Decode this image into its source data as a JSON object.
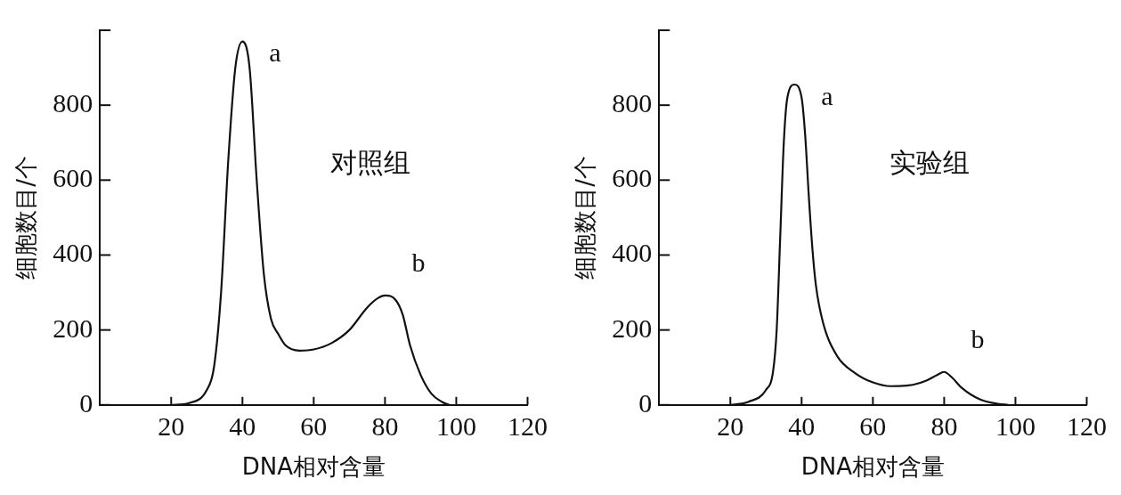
{
  "chart_data": [
    {
      "type": "line",
      "xlabel": "DNA相对含量",
      "ylabel": "细胞数目/个",
      "xlim": [
        0,
        120
      ],
      "ylim": [
        0,
        1000
      ],
      "xticks": [
        20,
        40,
        60,
        80,
        100,
        120
      ],
      "yticks": [
        0,
        200,
        400,
        600,
        800,
        {
          "value": 1000,
          "label": null
        }
      ],
      "grid": false,
      "legend": false,
      "series": [
        {
          "color": "#111111",
          "x": [
            20,
            25,
            30,
            32,
            34,
            36,
            38,
            40,
            42,
            44,
            46,
            48,
            50,
            52,
            56,
            60,
            65,
            70,
            75,
            78,
            80,
            83,
            85,
            87,
            90,
            93,
            96,
            98
          ],
          "values": [
            0,
            5,
            40,
            100,
            300,
            650,
            900,
            970,
            900,
            600,
            350,
            230,
            190,
            160,
            145,
            148,
            165,
            200,
            260,
            285,
            292,
            280,
            240,
            160,
            80,
            30,
            8,
            0
          ]
        }
      ],
      "annotations": [
        "对照组",
        {
          "text": "a",
          "x": 40,
          "y": 970
        },
        {
          "text": "b",
          "x": 80,
          "y": 292
        }
      ]
    },
    {
      "type": "line",
      "xlabel": "DNA相对含量",
      "ylabel": "细胞数目/个",
      "xlim": [
        0,
        120
      ],
      "ylim": [
        0,
        1000
      ],
      "xticks": [
        20,
        40,
        60,
        80,
        100,
        120
      ],
      "yticks": [
        0,
        200,
        400,
        600,
        800,
        {
          "value": 1000,
          "label": null
        }
      ],
      "grid": false,
      "legend": false,
      "series": [
        {
          "color": "#111111",
          "x": [
            20,
            25,
            30,
            32,
            33,
            34,
            35,
            36,
            38,
            40,
            41,
            42,
            43,
            44,
            46,
            50,
            55,
            60,
            65,
            70,
            75,
            78,
            80,
            82,
            85,
            90,
            95,
            98
          ],
          "values": [
            0,
            8,
            40,
            90,
            200,
            450,
            700,
            820,
            855,
            820,
            720,
            560,
            420,
            320,
            220,
            130,
            85,
            60,
            50,
            52,
            65,
            80,
            88,
            75,
            45,
            15,
            3,
            0
          ]
        }
      ],
      "annotations": [
        "实验组",
        {
          "text": "a",
          "x": 38,
          "y": 855
        },
        {
          "text": "b",
          "x": 80,
          "y": 88
        }
      ]
    }
  ]
}
